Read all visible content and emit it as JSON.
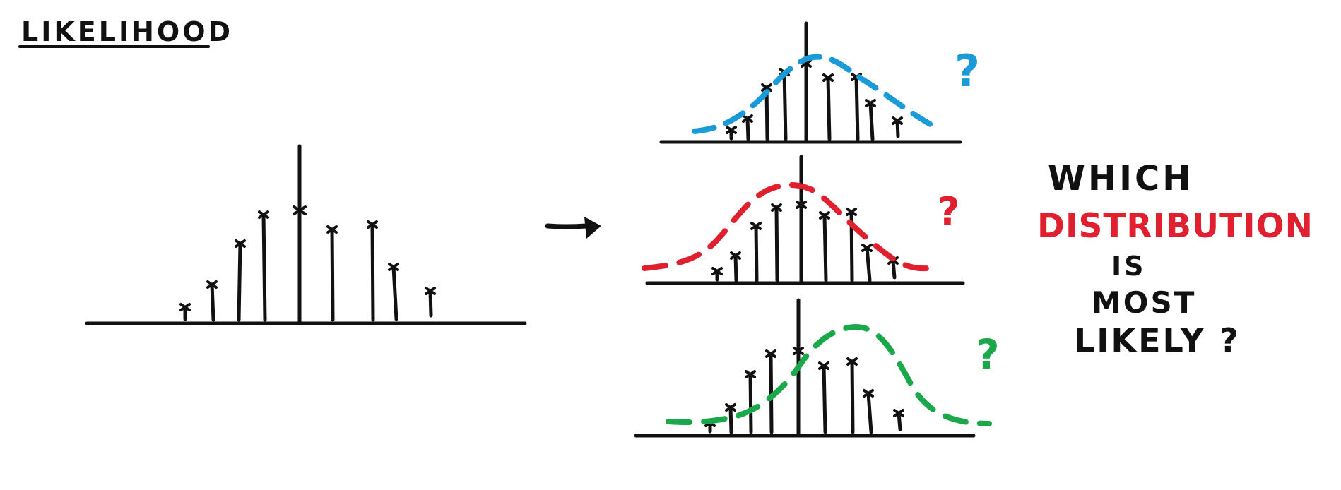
{
  "title": "LIKELIHOOD",
  "question": {
    "line1": "WHICH",
    "line2": "DISTRIBUTION",
    "line3": "IS",
    "line4": "MOST",
    "line5": "LIKELY ?"
  },
  "question_mark": "?",
  "colors": {
    "ink": "#111111",
    "blue": "#1a9ad6",
    "red": "#e0202e",
    "green": "#1aa84a",
    "highlight": "#e0202e"
  },
  "icons": {
    "arrow": "right-arrow-icon"
  }
}
